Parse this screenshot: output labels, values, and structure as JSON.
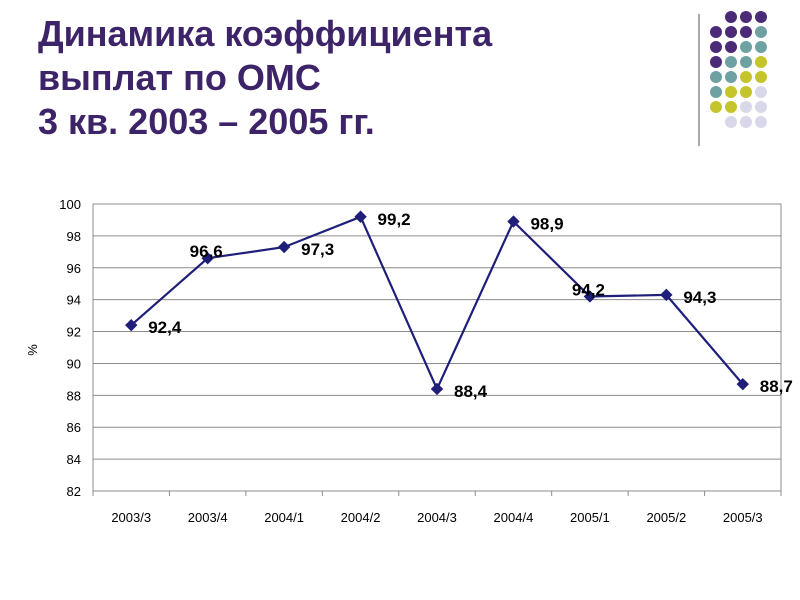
{
  "slide": {
    "title_lines": [
      "Динамика коэффициента",
      "выплат по ОМС",
      "3 кв. 2003 – 2005 гг."
    ]
  },
  "decoration": {
    "name": "dot-grid-decoration",
    "colors": {
      "purple": "#4b2a77",
      "teal": "#6fa1a2",
      "olive": "#c5c42a",
      "lavender": "#d9d8ea"
    }
  },
  "chart_data": {
    "type": "line",
    "title": "",
    "xlabel": "",
    "ylabel": "%",
    "categories": [
      "2003/3",
      "2003/4",
      "2004/1",
      "2004/2",
      "2004/3",
      "2004/4",
      "2005/1",
      "2005/2",
      "2005/3"
    ],
    "series": [
      {
        "values": [
          92.4,
          96.6,
          97.3,
          99.2,
          88.4,
          98.9,
          94.2,
          94.3,
          88.7
        ],
        "labels": [
          "92,4",
          "96,6",
          "97,3",
          "99,2",
          "88,4",
          "98,9",
          "94,2",
          "94,3",
          "88,7"
        ],
        "color": "#1f1f7a"
      }
    ],
    "ylim": [
      82,
      100
    ],
    "yticks": [
      82,
      84,
      86,
      88,
      90,
      92,
      94,
      96,
      98,
      100
    ],
    "grid": true,
    "legend": "none"
  }
}
